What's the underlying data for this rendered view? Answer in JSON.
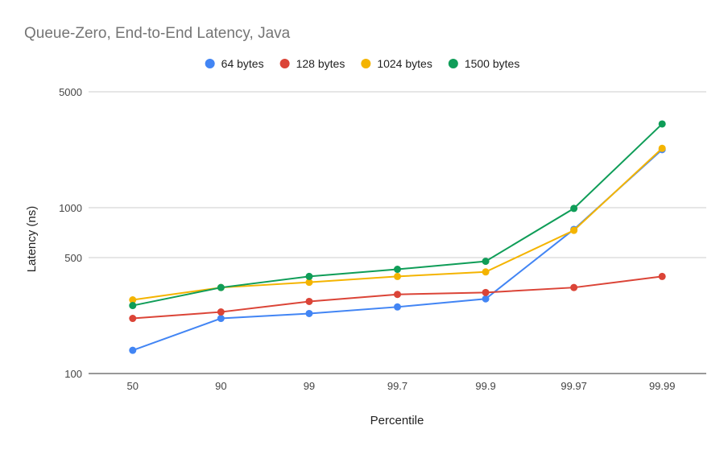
{
  "chart_data": {
    "type": "line",
    "title": "Queue-Zero, End-to-End Latency, Java",
    "xlabel": "Percentile",
    "ylabel": "Latency (ns)",
    "yscale": "log",
    "ylim": [
      100,
      6000
    ],
    "y_ticks": [
      {
        "value": 100,
        "label": "100"
      },
      {
        "value": 500,
        "label": "500"
      },
      {
        "value": 1000,
        "label": "1000"
      },
      {
        "value": 5000,
        "label": "5000"
      }
    ],
    "categories": [
      "50",
      "90",
      "99",
      "99.7",
      "99.9",
      "99.97",
      "99.99"
    ],
    "legend_position": "top",
    "grid": true,
    "series": [
      {
        "name": "64 bytes",
        "color": "#4285F4",
        "values": [
          138,
          215,
          230,
          252,
          282,
          740,
          2240
        ]
      },
      {
        "name": "128 bytes",
        "color": "#DB4437",
        "values": [
          215,
          235,
          272,
          300,
          308,
          330,
          385
        ]
      },
      {
        "name": "1024 bytes",
        "color": "#F4B400",
        "values": [
          278,
          330,
          355,
          385,
          410,
          730,
          2280
        ]
      },
      {
        "name": "1500 bytes",
        "color": "#0F9D58",
        "values": [
          257,
          330,
          385,
          425,
          475,
          990,
          3200
        ]
      }
    ]
  }
}
